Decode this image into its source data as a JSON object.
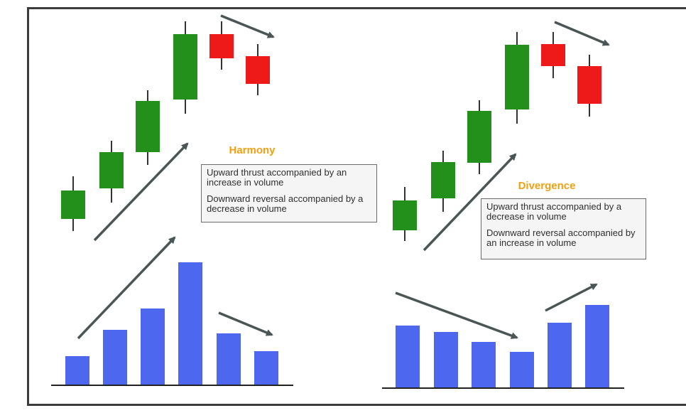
{
  "colors": {
    "bull": "#22901a",
    "bear": "#ee1a1a",
    "volume": "#4d68ee",
    "arrow": "#4a5656",
    "title": "#f0a012",
    "frame": "#3c3c3c"
  },
  "harmony": {
    "title": "Harmony",
    "note_1": "Upward thrust accompanied by an increase in volume",
    "note_2": "Downward reversal accompanied by a decrease in volume",
    "candles": [
      {
        "direction": "up"
      },
      {
        "direction": "up"
      },
      {
        "direction": "up"
      },
      {
        "direction": "up"
      },
      {
        "direction": "down"
      },
      {
        "direction": "down"
      }
    ],
    "volume_trend": [
      "rising",
      "rising",
      "rising",
      "rising",
      "falling",
      "falling"
    ]
  },
  "divergence": {
    "title": "Divergence",
    "note_1": "Upward thrust accompanied by a decrease in volume",
    "note_2": "Downward reversal accompanied by an increase in volume",
    "candles": [
      {
        "direction": "up"
      },
      {
        "direction": "up"
      },
      {
        "direction": "up"
      },
      {
        "direction": "up"
      },
      {
        "direction": "down"
      },
      {
        "direction": "down"
      }
    ],
    "volume_trend": [
      "falling",
      "falling",
      "falling",
      "falling",
      "rising",
      "rising"
    ]
  }
}
